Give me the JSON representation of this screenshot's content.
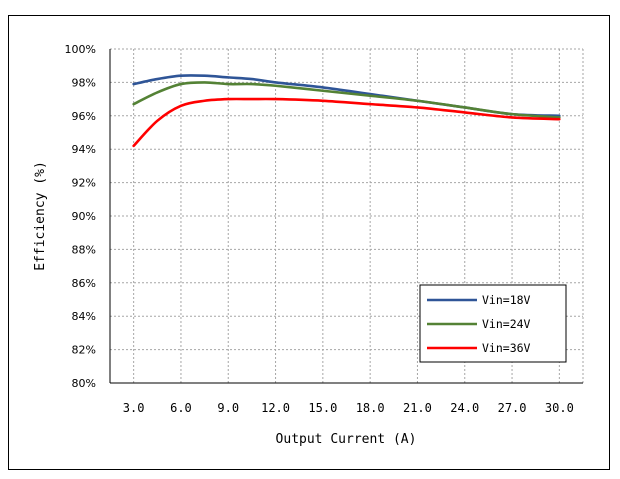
{
  "chart_data": {
    "type": "line",
    "title": "",
    "xlabel": "Output Current (A)",
    "ylabel": "Efficiency (%)",
    "x_tick_labels": [
      "3.0",
      "6.0",
      "9.0",
      "12.0",
      "15.0",
      "18.0",
      "21.0",
      "24.0",
      "27.0",
      "30.0"
    ],
    "y_tick_labels": [
      "80%",
      "82%",
      "84%",
      "86%",
      "88%",
      "90%",
      "92%",
      "94%",
      "96%",
      "98%",
      "100%"
    ],
    "xlim": [
      1.5,
      31.5
    ],
    "ylim": [
      80,
      100
    ],
    "grid": true,
    "legend_position": "bottom-right",
    "series": [
      {
        "name": "Vin=18V",
        "color": "#2f5597",
        "x": [
          3,
          4.5,
          6,
          7.5,
          9,
          10.5,
          12,
          15,
          18,
          21,
          24,
          27,
          30
        ],
        "y": [
          97.9,
          98.2,
          98.4,
          98.4,
          98.3,
          98.2,
          98.0,
          97.7,
          97.3,
          96.9,
          96.5,
          96.1,
          96.0
        ]
      },
      {
        "name": "Vin=24V",
        "color": "#548235",
        "x": [
          3,
          4.5,
          6,
          7.5,
          9,
          10.5,
          12,
          15,
          18,
          21,
          24,
          27,
          30
        ],
        "y": [
          96.7,
          97.4,
          97.9,
          98.0,
          97.9,
          97.9,
          97.8,
          97.5,
          97.2,
          96.9,
          96.5,
          96.1,
          95.9
        ]
      },
      {
        "name": "Vin=36V",
        "color": "#ff0000",
        "x": [
          3,
          4.5,
          6,
          7.5,
          9,
          10.5,
          12,
          15,
          18,
          21,
          24,
          27,
          30
        ],
        "y": [
          94.2,
          95.7,
          96.6,
          96.9,
          97.0,
          97.0,
          97.0,
          96.9,
          96.7,
          96.5,
          96.2,
          95.9,
          95.8
        ]
      }
    ]
  }
}
